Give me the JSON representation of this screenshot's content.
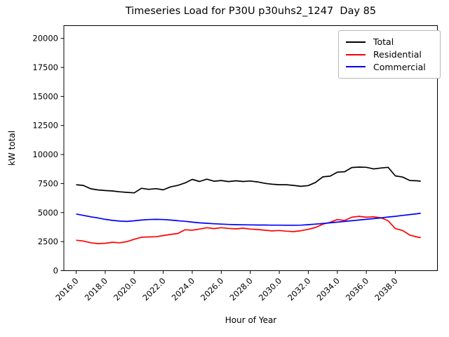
{
  "chart_data": {
    "type": "line",
    "title": "Timeseries Load for P30U p30uhs2_1247  Day 85",
    "xlabel": "Hour of Year",
    "ylabel": "kW total",
    "grid": false,
    "legend_position": "upper right",
    "xlim": [
      2015.15,
      2040.9
    ],
    "ylim": [
      0,
      21100
    ],
    "x_ticks": [
      2016,
      2018,
      2020,
      2022,
      2024,
      2026,
      2028,
      2030,
      2032,
      2034,
      2036,
      2038
    ],
    "x_tick_labels": [
      "2016.0",
      "2018.0",
      "2020.0",
      "2022.0",
      "2024.0",
      "2026.0",
      "2028.0",
      "2030.0",
      "2032.0",
      "2034.0",
      "2036.0",
      "2038.0"
    ],
    "y_ticks": [
      0,
      2500,
      5000,
      7500,
      10000,
      12500,
      15000,
      17500,
      20000
    ],
    "y_tick_labels": [
      "0",
      "2500",
      "5000",
      "7500",
      "10000",
      "12500",
      "15000",
      "17500",
      "20000"
    ],
    "x": [
      2016.0,
      2016.5,
      2017.0,
      2017.5,
      2018.0,
      2018.5,
      2019.0,
      2019.5,
      2020.0,
      2020.5,
      2021.0,
      2021.5,
      2022.0,
      2022.5,
      2023.0,
      2023.5,
      2024.0,
      2024.5,
      2025.0,
      2025.5,
      2026.0,
      2026.5,
      2027.0,
      2027.5,
      2028.0,
      2028.5,
      2029.0,
      2029.5,
      2030.0,
      2030.5,
      2031.0,
      2031.5,
      2032.0,
      2032.5,
      2033.0,
      2033.5,
      2034.0,
      2034.5,
      2035.0,
      2035.5,
      2036.0,
      2036.5,
      2037.0,
      2037.5,
      2038.0,
      2038.5,
      2039.0,
      2039.5,
      2039.75
    ],
    "series": [
      {
        "name": "Total",
        "color": "#000000",
        "values": [
          7400,
          7340,
          7050,
          6950,
          6900,
          6860,
          6790,
          6740,
          6700,
          7090,
          7000,
          7060,
          6960,
          7210,
          7340,
          7550,
          7860,
          7680,
          7880,
          7700,
          7760,
          7670,
          7740,
          7680,
          7720,
          7640,
          7520,
          7440,
          7400,
          7400,
          7340,
          7260,
          7330,
          7600,
          8080,
          8140,
          8480,
          8520,
          8880,
          8920,
          8900,
          8760,
          8840,
          8900,
          8160,
          8060,
          7760,
          7740,
          7700
        ]
      },
      {
        "name": "Residential",
        "color": "#ff0000",
        "values": [
          2620,
          2550,
          2400,
          2330,
          2360,
          2440,
          2400,
          2500,
          2700,
          2880,
          2900,
          2920,
          3020,
          3120,
          3200,
          3520,
          3480,
          3580,
          3700,
          3620,
          3700,
          3640,
          3600,
          3660,
          3580,
          3540,
          3480,
          3420,
          3460,
          3400,
          3360,
          3440,
          3560,
          3720,
          4000,
          4160,
          4400,
          4320,
          4600,
          4680,
          4600,
          4640,
          4560,
          4300,
          3620,
          3460,
          3060,
          2900,
          2840
        ]
      },
      {
        "name": "Commercial",
        "color": "#0000ff",
        "values": [
          4880,
          4760,
          4640,
          4540,
          4420,
          4330,
          4270,
          4240,
          4290,
          4360,
          4400,
          4420,
          4400,
          4360,
          4300,
          4250,
          4180,
          4120,
          4080,
          4040,
          4010,
          3980,
          3960,
          3950,
          3940,
          3930,
          3930,
          3920,
          3920,
          3910,
          3910,
          3920,
          3960,
          4010,
          4060,
          4120,
          4180,
          4240,
          4300,
          4360,
          4420,
          4480,
          4540,
          4620,
          4680,
          4760,
          4830,
          4900,
          4950
        ]
      }
    ]
  }
}
